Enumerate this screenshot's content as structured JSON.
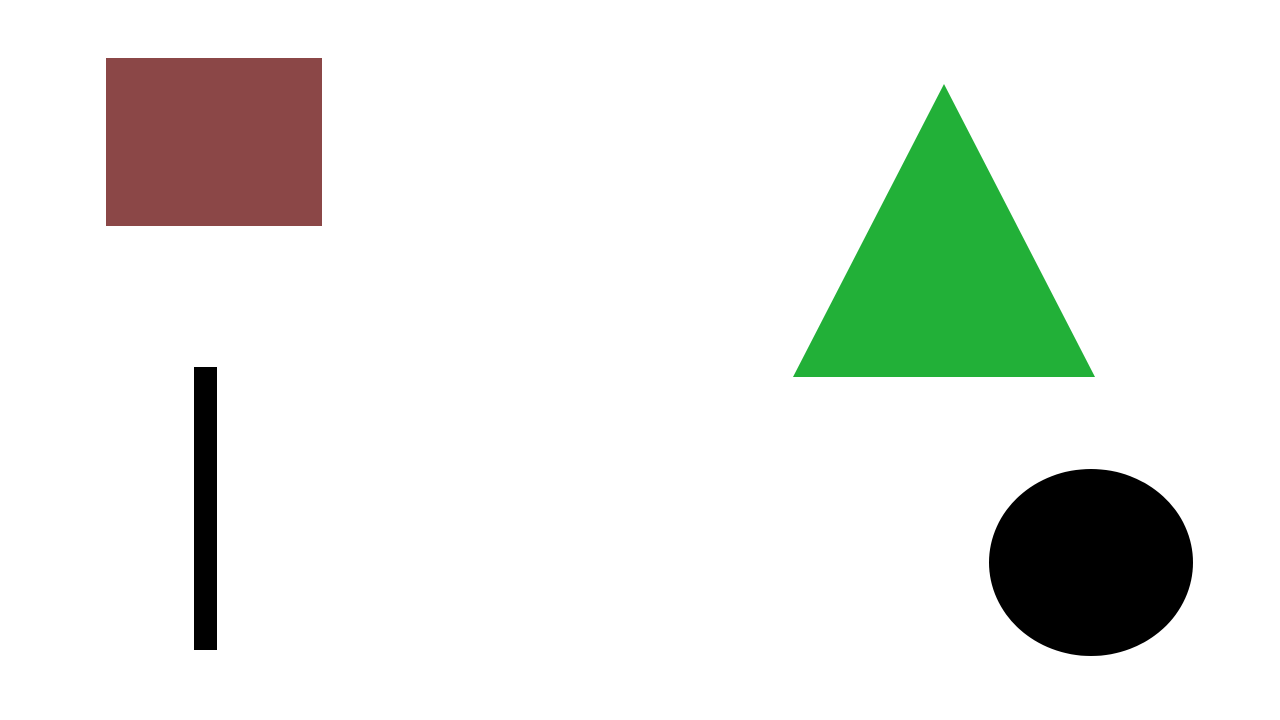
{
  "shapes": {
    "rectangle": {
      "kind": "rectangle",
      "color": "#8b4747"
    },
    "bar": {
      "kind": "vertical-bar",
      "color": "#000000"
    },
    "triangle": {
      "kind": "triangle",
      "color": "#22b038"
    },
    "ellipse": {
      "kind": "ellipse",
      "color": "#000000"
    }
  }
}
